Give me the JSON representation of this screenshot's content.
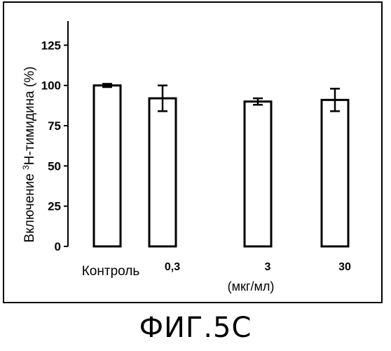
{
  "figure_caption": "ФИГ.5С",
  "chart_data": {
    "type": "bar",
    "categories": [
      "Контроль",
      "0,3",
      "3",
      "30"
    ],
    "values": [
      100,
      92,
      90,
      91
    ],
    "errors": [
      1,
      8,
      2,
      7
    ],
    "ylabel_prefix": "Включение ",
    "ylabel_sup": "3",
    "ylabel_suffix": "Н-тимидина (%)",
    "xlabel": "(мкг/мл)",
    "yticks": [
      0,
      25,
      50,
      75,
      100,
      125
    ],
    "ylim": [
      0,
      140
    ],
    "grid": false,
    "bar_fill": "#ffffff",
    "bar_stroke": "#000000"
  }
}
